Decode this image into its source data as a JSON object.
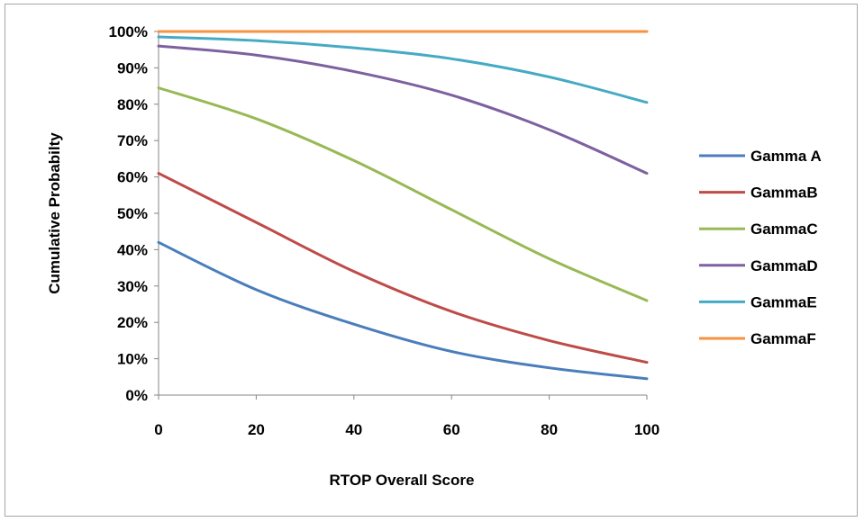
{
  "chart_data": {
    "type": "line",
    "title": "",
    "xlabel": "RTOP Overall Score",
    "ylabel": "Cumulative Probabilty",
    "x": [
      0,
      20,
      40,
      60,
      80,
      100
    ],
    "xticks": [
      "0",
      "20",
      "40",
      "60",
      "80",
      "100"
    ],
    "yticks": [
      "0%",
      "10%",
      "20%",
      "30%",
      "40%",
      "50%",
      "60%",
      "70%",
      "80%",
      "90%",
      "100%"
    ],
    "xlim": [
      0,
      100
    ],
    "ylim": [
      0,
      1
    ],
    "grid": false,
    "legend": "right",
    "series": [
      {
        "name": "Gamma A",
        "color": "#4a7ebb",
        "values": [
          0.42,
          0.29,
          0.195,
          0.12,
          0.075,
          0.045
        ]
      },
      {
        "name": "GammaB",
        "color": "#be4b48",
        "values": [
          0.61,
          0.475,
          0.34,
          0.23,
          0.15,
          0.09
        ]
      },
      {
        "name": "GammaC",
        "color": "#98b954",
        "values": [
          0.845,
          0.76,
          0.645,
          0.51,
          0.375,
          0.26
        ]
      },
      {
        "name": "GammaD",
        "color": "#7d60a0",
        "values": [
          0.96,
          0.935,
          0.89,
          0.825,
          0.73,
          0.61
        ]
      },
      {
        "name": "GammaE",
        "color": "#46aac5",
        "values": [
          0.985,
          0.975,
          0.955,
          0.925,
          0.875,
          0.805
        ]
      },
      {
        "name": "GammaF",
        "color": "#f69240",
        "values": [
          1.0,
          1.0,
          1.0,
          1.0,
          1.0,
          1.0
        ]
      }
    ]
  }
}
